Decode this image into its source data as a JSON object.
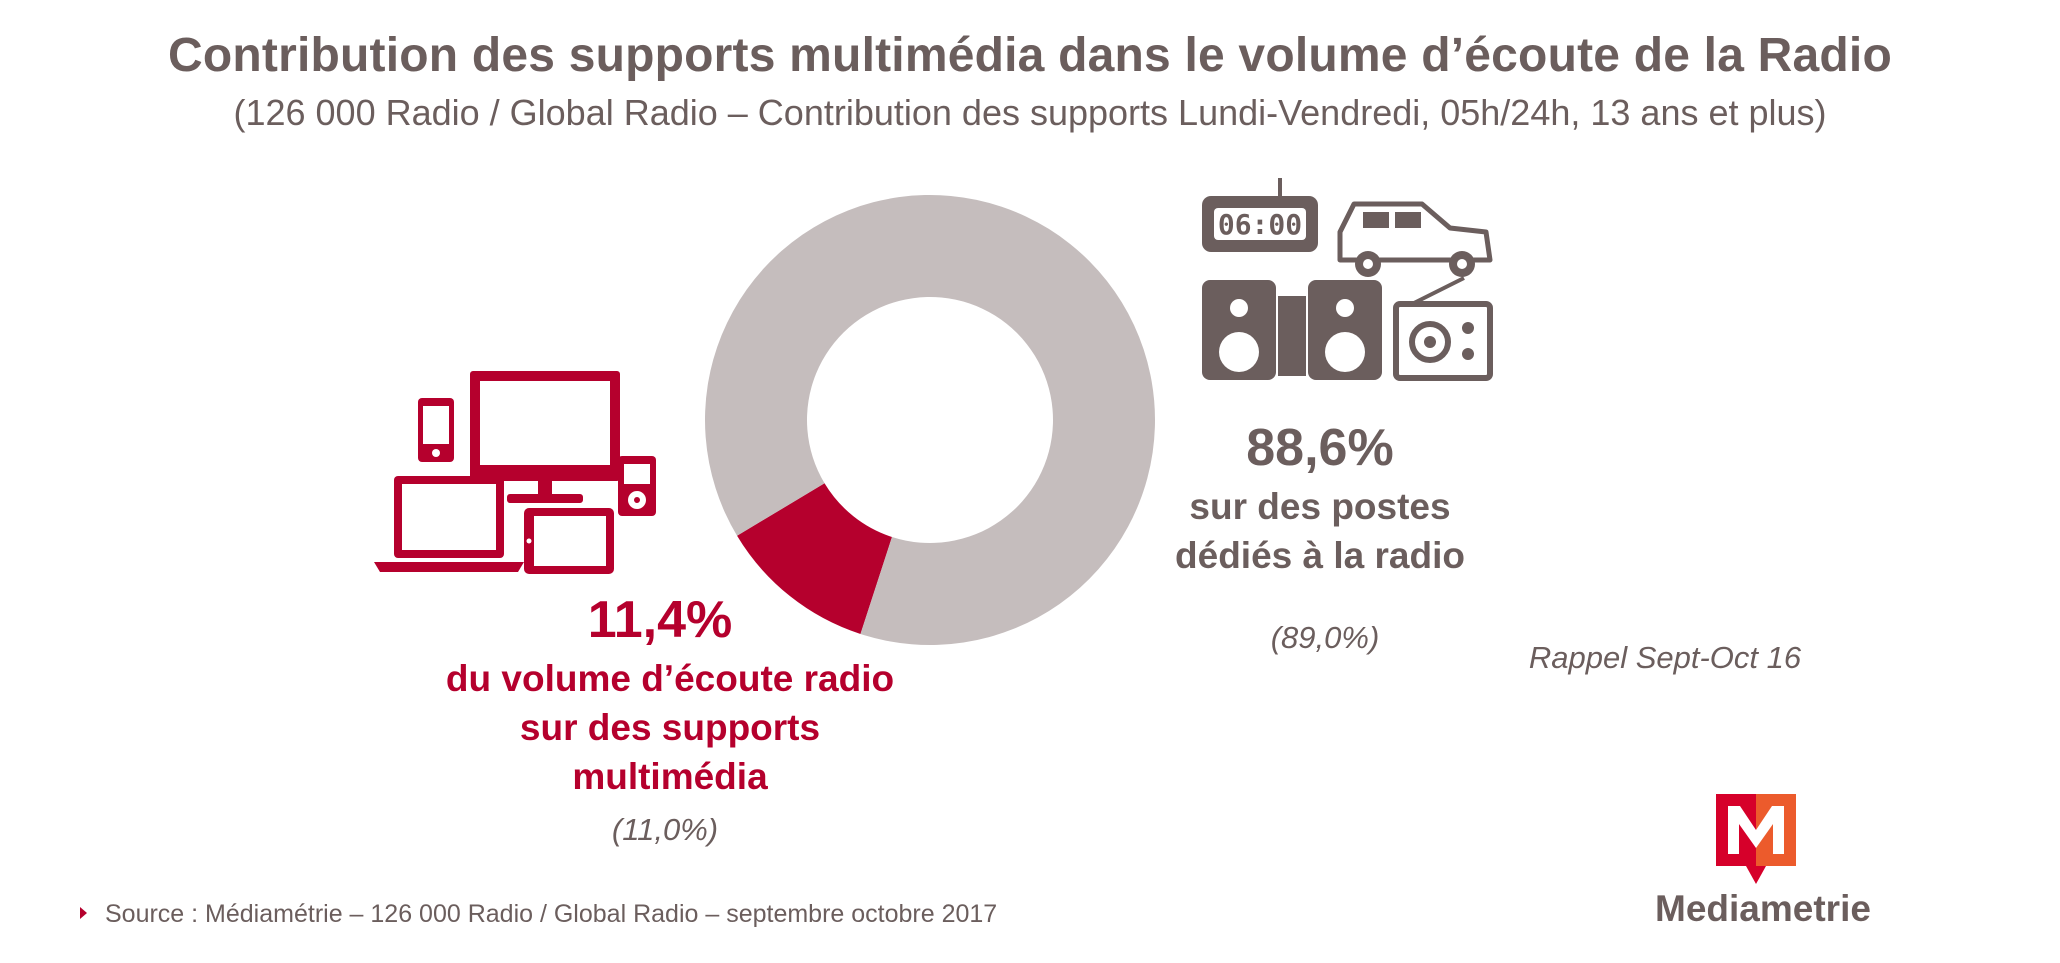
{
  "title": "Contribution des supports multimédia dans le volume d’écoute de la Radio",
  "subtitle": "(126 000 Radio / Global Radio – Contribution des supports Lundi-Vendredi, 05h/24h, 13 ans et plus)",
  "chart_data": {
    "type": "pie",
    "variant": "donut",
    "title": "Contribution des supports multimédia dans le volume d’écoute de la Radio",
    "series": [
      {
        "label_value": "11,4%",
        "value": 11.4,
        "description": [
          "du volume d’écoute radio",
          "sur des supports",
          "multimédia"
        ],
        "previous_label": "(11,0%)",
        "previous_value": 11.0,
        "color": "#b5002d"
      },
      {
        "label_value": "88,6%",
        "value": 88.6,
        "description": [
          "sur des postes",
          "dédiés à la radio"
        ],
        "previous_label": "(89,0%)",
        "previous_value": 89.0,
        "color": "#c5bdbd"
      }
    ],
    "previous_note": "Rappel Sept-Oct 16"
  },
  "icons": {
    "multimedia": [
      "smartphone-icon",
      "monitor-icon",
      "mp3-player-icon",
      "laptop-icon",
      "tablet-icon"
    ],
    "dedicated": [
      "alarm-clock-radio-icon",
      "car-icon",
      "hifi-speakers-icon",
      "portable-radio-icon"
    ],
    "clock_display": "06:00",
    "accent_color": "#b5002d",
    "grey_color": "#6b5e5d"
  },
  "source": "Source : Médiamétrie –  126 000 Radio / Global Radio – septembre octobre 2017",
  "logo": {
    "text": "Mediametrie",
    "letter": "M"
  }
}
